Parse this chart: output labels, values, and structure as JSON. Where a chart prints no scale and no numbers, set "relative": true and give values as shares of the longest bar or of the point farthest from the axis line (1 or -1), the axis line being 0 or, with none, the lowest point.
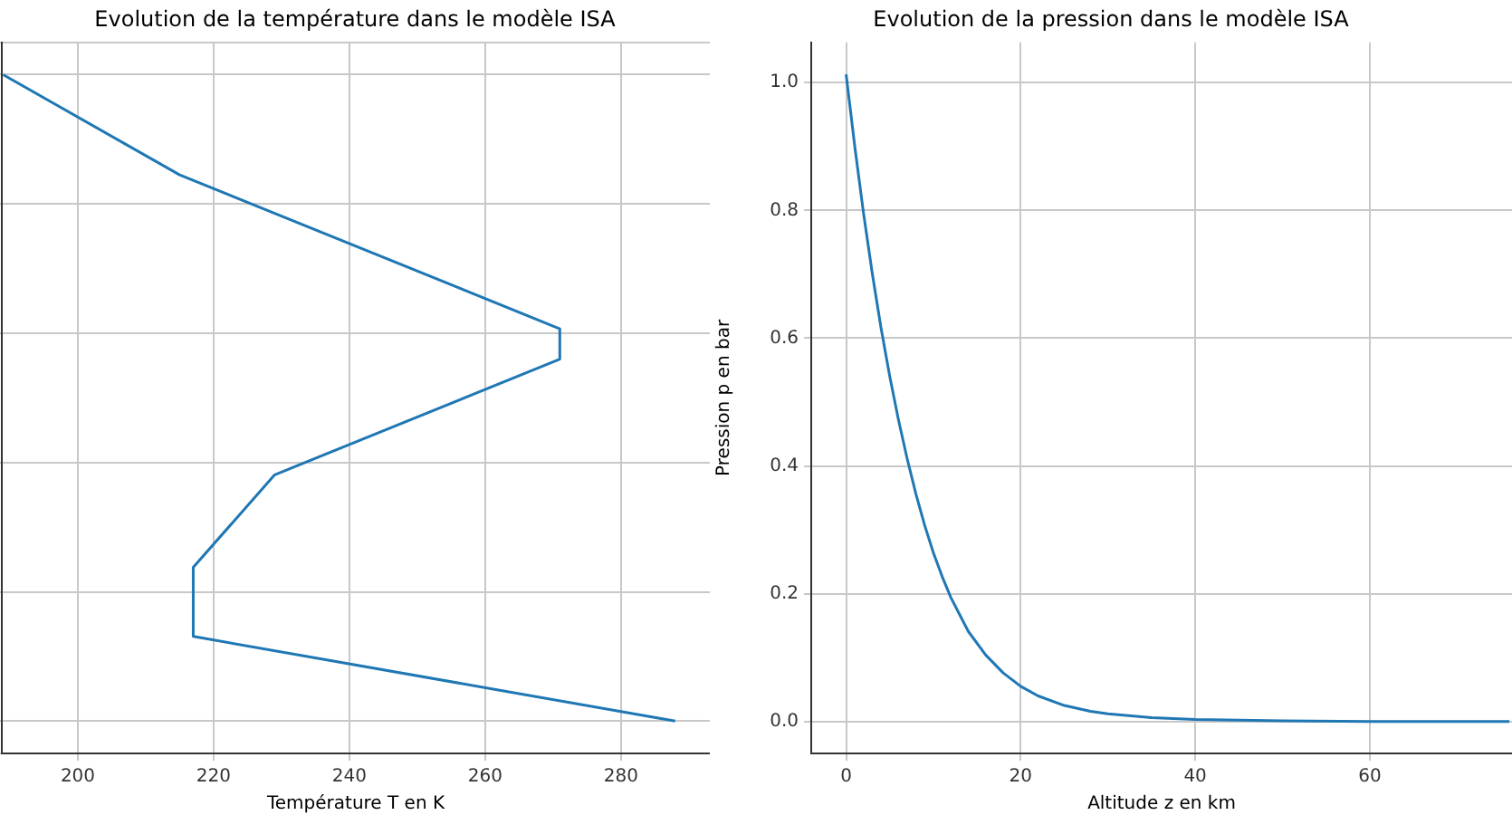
{
  "chart_data": [
    {
      "type": "line",
      "title": "Evolution de la température dans le modèle ISA",
      "xlabel": "Température T en K",
      "x": [
        288,
        217,
        217,
        229,
        271,
        271,
        215,
        189
      ],
      "series": [
        {
          "color": "#1f77b4",
          "values": [
            0,
            0.131,
            0.238,
            0.381,
            0.56,
            0.607,
            0.845,
            1
          ]
        }
      ],
      "relative": true,
      "xlim": [
        188.8,
        293.1
      ],
      "xticks": [
        200,
        220,
        240,
        260,
        280
      ],
      "tick_labels": "x",
      "grid": true
    },
    {
      "type": "line",
      "title": "Evolution de la pression dans le modèle ISA",
      "xlabel": "Altitude z en km",
      "ylabel": "Pression p en bar",
      "x": [
        0,
        1,
        2,
        3,
        4,
        5,
        6,
        7,
        8,
        9,
        10,
        11,
        12,
        14,
        16,
        18,
        20,
        22,
        25,
        28,
        30,
        35,
        40,
        50,
        60,
        76
      ],
      "series": [
        {
          "color": "#1f77b4",
          "values": [
            1.013,
            0.899,
            0.795,
            0.701,
            0.616,
            0.54,
            0.472,
            0.411,
            0.356,
            0.307,
            0.264,
            0.227,
            0.194,
            0.141,
            0.104,
            0.076,
            0.055,
            0.04,
            0.025,
            0.016,
            0.012,
            0.006,
            0.003,
            0.001,
            0.0,
            0.0
          ]
        }
      ],
      "xlim": [
        -4.0,
        76.3
      ],
      "xticks": [
        0,
        20,
        40,
        60
      ],
      "ylim": [
        -0.05,
        1.063
      ],
      "yticks": [
        {
          "value": 0,
          "label": "0.0"
        },
        0.2,
        0.4,
        0.6,
        0.8,
        {
          "value": 1,
          "label": "1.0"
        }
      ],
      "grid": true
    }
  ]
}
